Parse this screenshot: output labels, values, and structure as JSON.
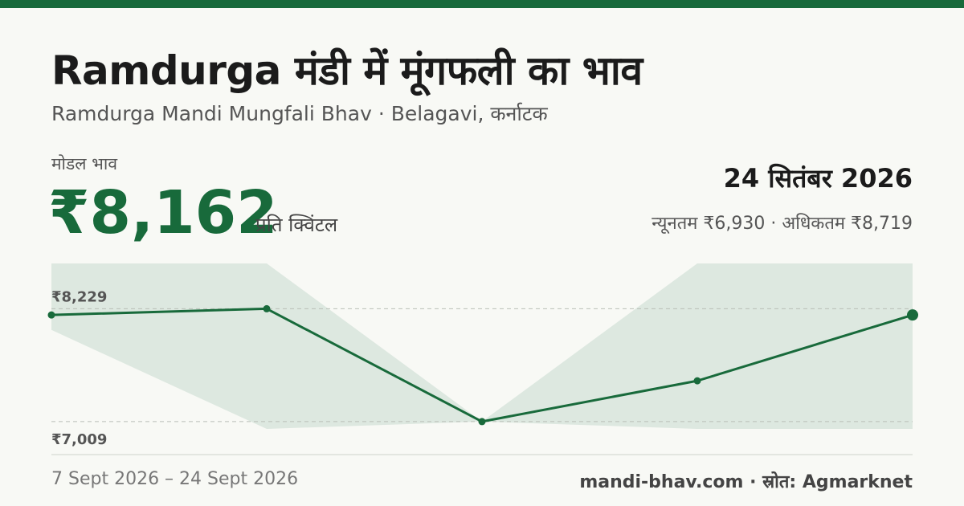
{
  "header": {
    "title": "Ramdurga मंडी में मूंगफली का भाव",
    "subtitle": "Ramdurga Mandi Mungfali Bhav · Belagavi, कर्नाटक"
  },
  "summary": {
    "modal_label": "मोडल भाव",
    "modal_price": "₹8,162",
    "unit": "प्रति क्विंटल",
    "date": "24 सितंबर 2026",
    "min_max": "न्यूनतम ₹6,930 · अधिकतम ₹8,719"
  },
  "footer": {
    "date_range": "7 Sept 2026 – 24 Sept 2026",
    "source": "mandi-bhav.com · स्रोत: Agmarknet"
  },
  "colors": {
    "accent": "#186a3b",
    "band": "#dde8e0",
    "text": "#1b1b1b"
  },
  "chart_data": {
    "type": "line",
    "ylim": [
      6930,
      8719
    ],
    "y_ticks": [
      8229,
      7009
    ],
    "y_tick_labels": [
      "₹8,229",
      "₹7,009"
    ],
    "grid": true,
    "series": [
      {
        "values": [
          8162,
          8229,
          7009,
          7450,
          8162
        ]
      }
    ],
    "band": {
      "upper": [
        8719,
        8719,
        7009,
        8719,
        8719
      ],
      "lower": [
        8000,
        6930,
        7009,
        6930,
        6930
      ]
    }
  }
}
